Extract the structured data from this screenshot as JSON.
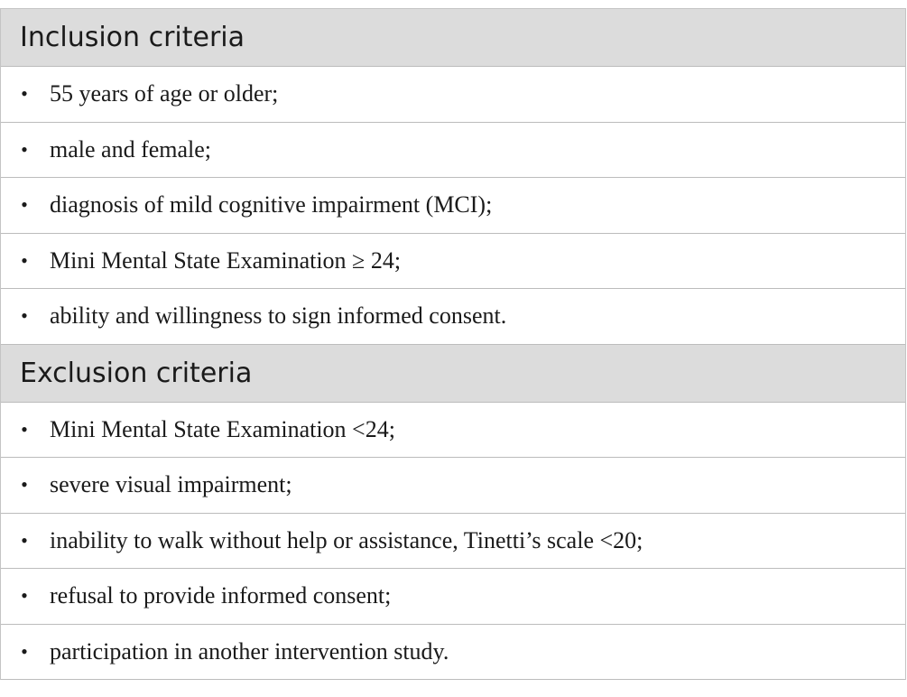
{
  "sections": [
    {
      "header": "Inclusion criteria",
      "items": [
        "55 years of age or older;",
        "male and female;",
        "diagnosis of mild cognitive impairment (MCI);",
        "Mini Mental State Examination ≥ 24;",
        "ability and willingness to sign informed consent."
      ]
    },
    {
      "header": "Exclusion criteria",
      "items": [
        "Mini Mental State Examination <24;",
        "severe visual impairment;",
        "inability to walk without help or assistance, Tinetti’s scale <20;",
        "refusal to provide informed consent;",
        "participation in another intervention study."
      ]
    }
  ],
  "bullet_glyph": "•",
  "colors": {
    "header_background": "#dcdcdc",
    "border": "#bcbcbc",
    "text": "#1a1a1a"
  }
}
